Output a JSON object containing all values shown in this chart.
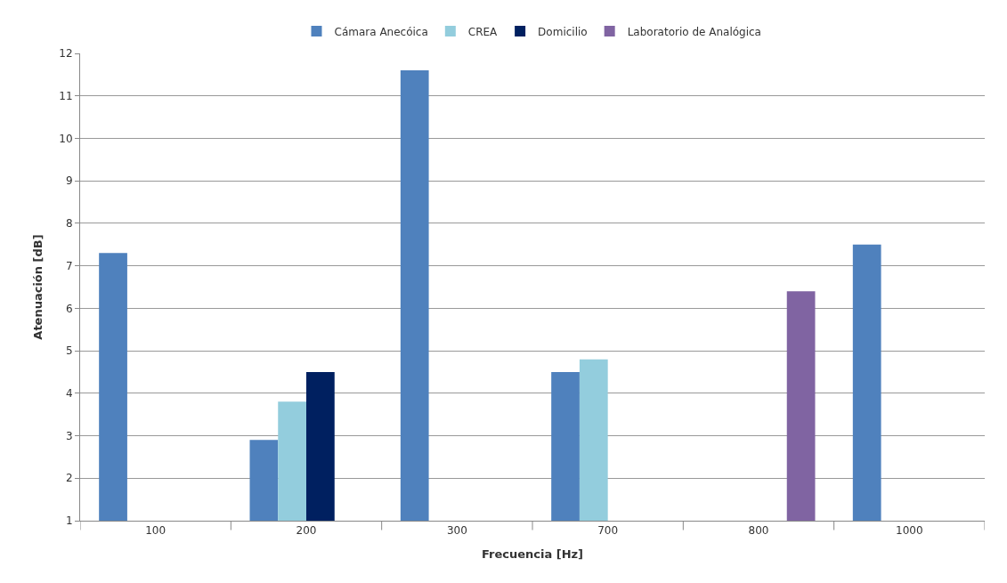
{
  "chart_data": {
    "type": "bar",
    "xlabel": "Frecuencia [Hz]",
    "ylabel": "Atenuación [dB]",
    "categories": [
      "100",
      "200",
      "300",
      "700",
      "800",
      "1000"
    ],
    "series": [
      {
        "name": "Cámara Anecóica",
        "color": "#4f81bd",
        "values": [
          7.3,
          2.9,
          11.6,
          4.5,
          null,
          7.5
        ]
      },
      {
        "name": "CREA",
        "color": "#93cddd",
        "values": [
          null,
          3.8,
          null,
          4.8,
          null,
          null
        ]
      },
      {
        "name": "Domicilio",
        "color": "#002060",
        "values": [
          null,
          4.5,
          null,
          null,
          null,
          null
        ]
      },
      {
        "name": "Laboratorio de Analógica",
        "color": "#8064a2",
        "values": [
          null,
          null,
          null,
          null,
          6.4,
          null
        ]
      }
    ],
    "ylim": [
      1,
      12
    ],
    "yticks": [
      1,
      2,
      3,
      4,
      5,
      6,
      7,
      8,
      9,
      10,
      11,
      12
    ],
    "grid": "y",
    "legend": "top"
  }
}
